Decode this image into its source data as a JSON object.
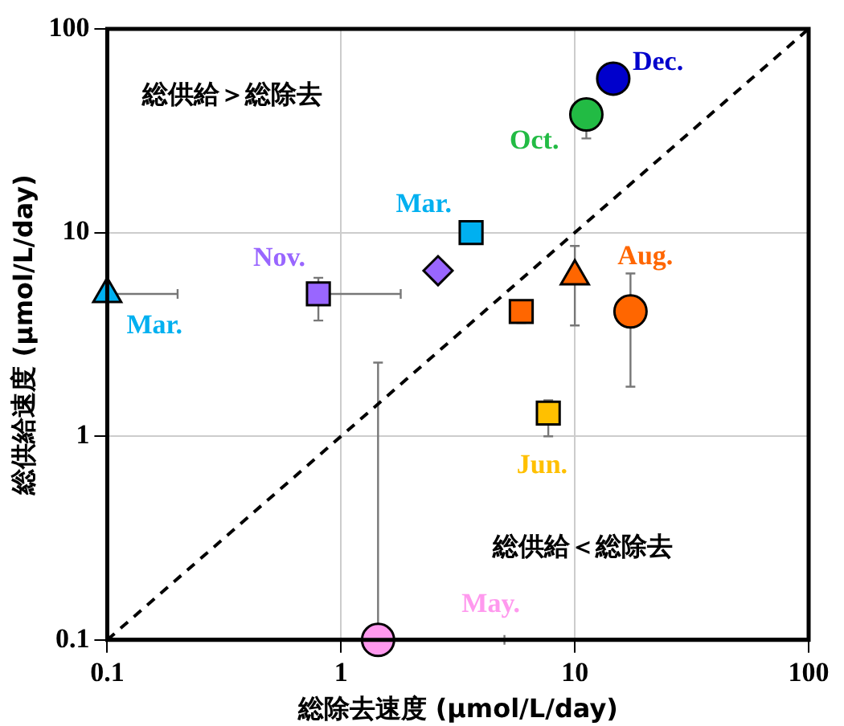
{
  "chart_data": {
    "type": "scatter",
    "xlabel": "総除去速度 (µmol/L/day)",
    "ylabel": "総供給速度 (µmol/L/day)",
    "log": "xy",
    "xlim": [
      0.1,
      100
    ],
    "ylim": [
      0.1,
      100
    ],
    "xticks": [
      0.1,
      1,
      10,
      100
    ],
    "yticks": [
      0.1,
      1,
      10,
      100
    ],
    "grid": true,
    "legend": false,
    "annotations": [
      "総供給＞総除去",
      "総供給＜総除去"
    ],
    "series": [
      {
        "name": "Mar.",
        "marker": "triangle",
        "color": "#00b0f0",
        "x": [
          0.1
        ],
        "values": [
          5
        ],
        "xerrors": [
          [
            0.1,
            0.2
          ]
        ]
      },
      {
        "name": "Nov.",
        "marker": "square",
        "color": "#9966ff",
        "x": [
          0.8
        ],
        "values": [
          5
        ],
        "xerrors": [
          [
            0.8,
            1.8
          ]
        ],
        "errors": [
          [
            3.7,
            6
          ]
        ]
      },
      {
        "marker": "diamond",
        "color": "#9966ff",
        "x": [
          2.6
        ],
        "values": [
          6.5
        ]
      },
      {
        "name": "Mar.",
        "marker": "square",
        "color": "#00b0f0",
        "x": [
          3.6
        ],
        "values": [
          10
        ]
      },
      {
        "name": "Dec.",
        "marker": "circle",
        "color": "#0000cc",
        "x": [
          14.6
        ],
        "values": [
          57
        ]
      },
      {
        "name": "Oct.",
        "marker": "circle",
        "color": "#22bb44",
        "x": [
          11.2
        ],
        "values": [
          38
        ],
        "errors": [
          [
            29,
            38
          ]
        ]
      },
      {
        "marker": "triangle",
        "color": "#ff6600",
        "x": [
          10
        ],
        "values": [
          6.1
        ],
        "errors": [
          [
            3.5,
            8.6
          ]
        ]
      },
      {
        "name": "Aug.",
        "marker": "circle",
        "color": "#ff6600",
        "x": [
          17.3
        ],
        "values": [
          4.1
        ],
        "errors": [
          [
            1.75,
            6.3
          ]
        ]
      },
      {
        "marker": "square",
        "color": "#ff6600",
        "x": [
          5.9
        ],
        "values": [
          4.1
        ],
        "errors": [
          [
            3.6,
            4.1
          ]
        ]
      },
      {
        "name": "Jun.",
        "marker": "square",
        "color": "#ffc000",
        "x": [
          7.7
        ],
        "values": [
          1.3
        ],
        "errors": [
          [
            1.0,
            1.5
          ]
        ]
      },
      {
        "name": "May.",
        "marker": "circle",
        "color": "#ff99ee",
        "x": [
          1.44
        ],
        "values": [
          0.1
        ],
        "errors": [
          [
            0.1,
            2.3
          ]
        ],
        "xerrors": [
          [
            1.44,
            5
          ]
        ]
      },
      {
        "type": "line",
        "marker": "none",
        "line_style": "dashed",
        "color": "#000000",
        "x": [
          0.1,
          100
        ],
        "values": [
          0.1,
          100
        ]
      }
    ]
  }
}
